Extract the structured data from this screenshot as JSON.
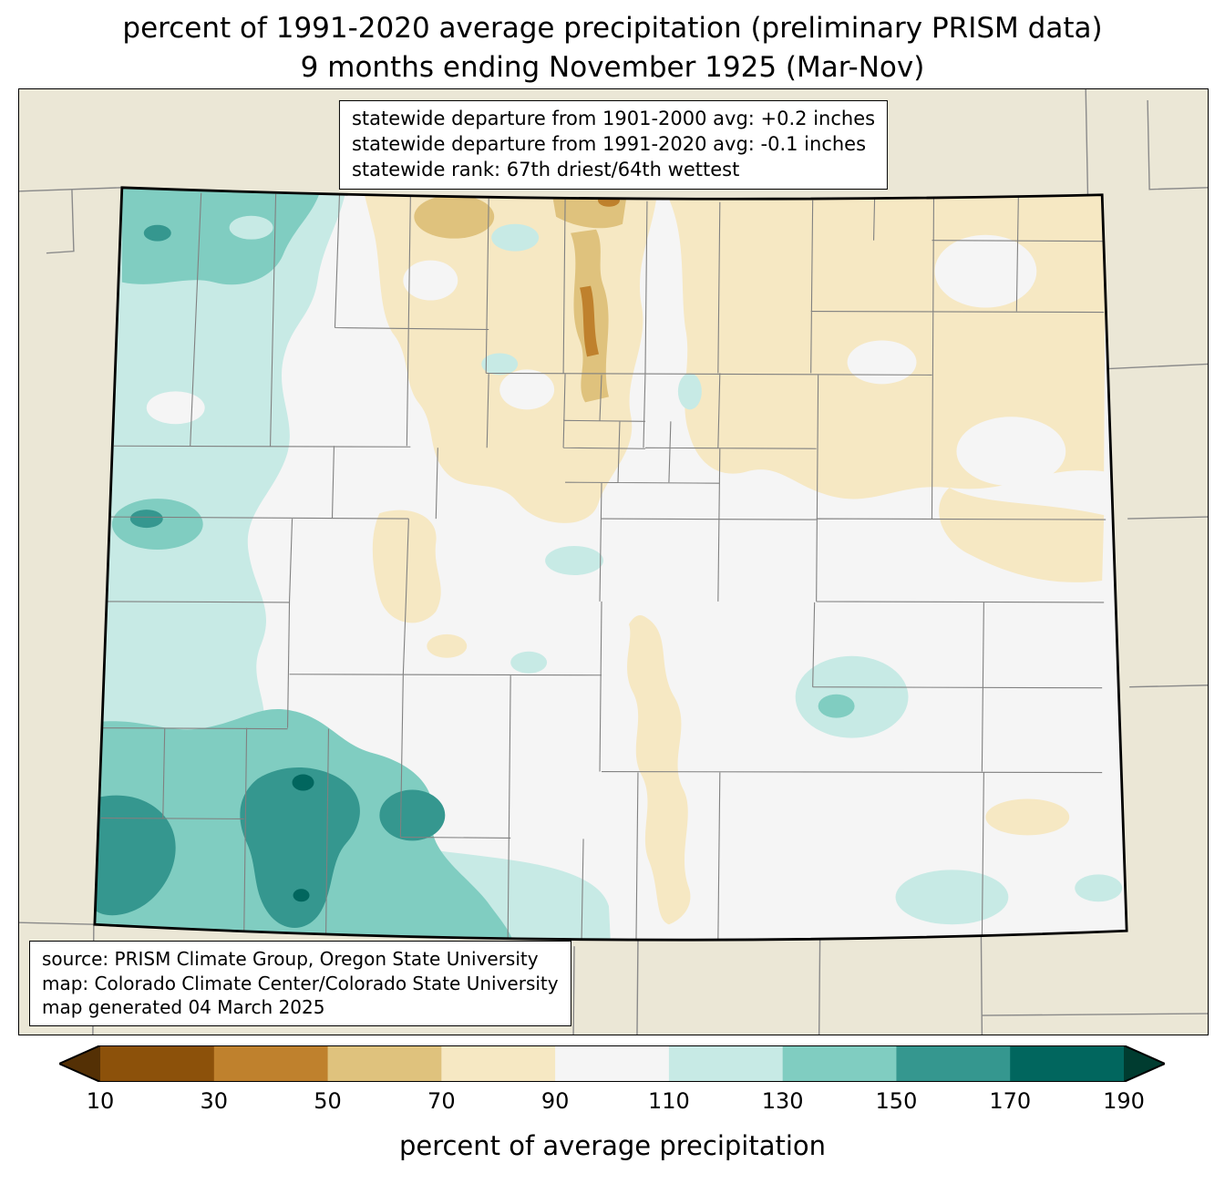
{
  "title": {
    "line1": "percent of 1991-2020 average precipitation (preliminary PRISM data)",
    "line2": "9 months ending November 1925 (Mar-Nov)"
  },
  "stats_box": {
    "lines": [
      "statewide departure from 1901-2000 avg: +0.2 inches",
      "statewide departure from 1991-2020 avg: -0.1 inches",
      "statewide rank: 67th driest/64th wettest"
    ]
  },
  "source_box": {
    "lines": [
      "source: PRISM Climate Group, Oregon State University",
      "map: Colorado Climate Center/Colorado State University",
      "map generated 04 March 2025"
    ]
  },
  "colorbar": {
    "label": "percent of average precipitation",
    "ticks": [
      "10",
      "30",
      "50",
      "70",
      "90",
      "110",
      "130",
      "150",
      "170",
      "190"
    ],
    "under_color": "#543005",
    "over_color": "#003c30",
    "segment_colors": [
      "#8c510a",
      "#bf812d",
      "#dfc27d",
      "#f6e8c3",
      "#f5f5f5",
      "#c7eae5",
      "#80cdc1",
      "#35978f",
      "#01665e"
    ]
  },
  "map": {
    "region": "Colorado",
    "colors": {
      "outside": "#ebe7d6",
      "state_fill": "#f5f5f5",
      "county_line": "#808080",
      "neighbor_line": "#8a8a8a",
      "state_border": "#000000",
      "tan_light": "#f6e8c3",
      "tan_mid": "#dfc27d",
      "tan_dark": "#bf812d",
      "tan_darkest": "#8c510a",
      "teal_pale": "#c7eae5",
      "teal_light": "#80cdc1",
      "teal_mid": "#35978f",
      "teal_dark": "#01665e"
    }
  }
}
